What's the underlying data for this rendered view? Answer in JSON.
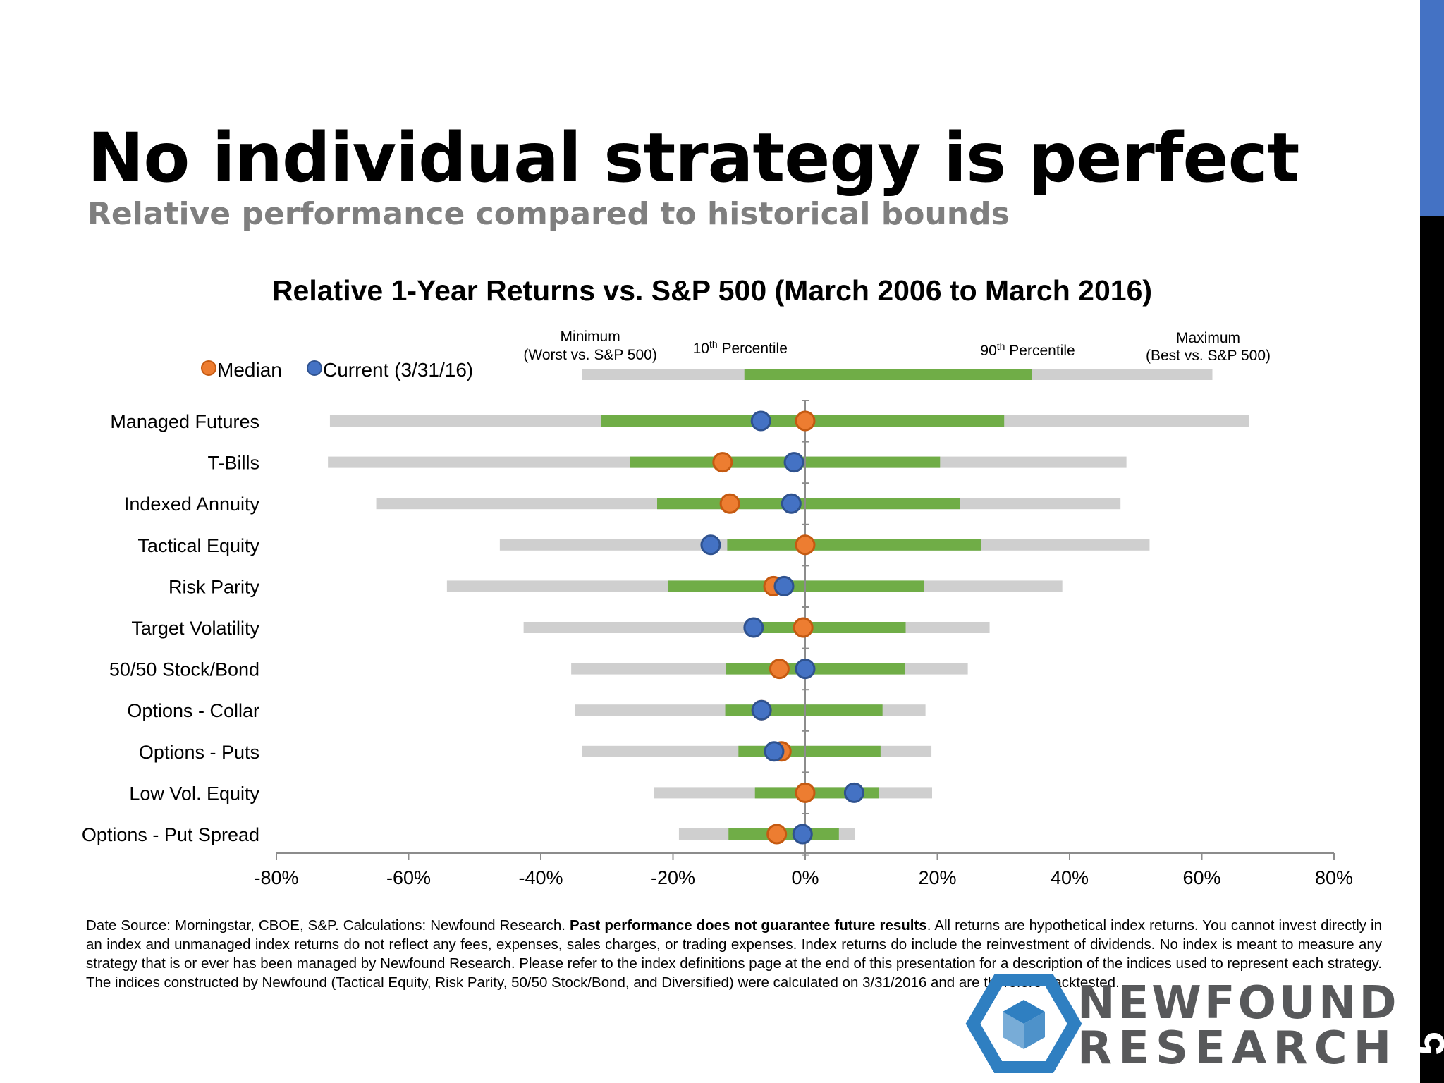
{
  "slide": {
    "title": "No individual strategy is perfect",
    "subtitle": "Relative performance compared to historical bounds",
    "page_number": "5"
  },
  "logo": {
    "line1": "NEWFOUND",
    "line2": "RESEARCH"
  },
  "footnote": {
    "part1": "Date Source: Morningstar, CBOE, S&P. Calculations: Newfound Research. ",
    "bold": "Past performance does not guarantee future results",
    "part2": ". All returns are hypothetical index returns.  You cannot invest directly in an index and unmanaged index returns do not reflect any fees, expenses, sales charges, or trading expenses. Index returns do include the reinvestment of dividends. No index is meant to measure any strategy that is or ever has been managed by Newfound Research. Please refer to the index definitions page at the end of this presentation for a description of the indices used to represent each strategy. The indices constructed by Newfound (Tactical Equity, Risk Parity, 50/50 Stock/Bond, and Diversified) were calculated on 3/31/2016 and are therefore backtested."
  },
  "chart_data": {
    "type": "range_dot",
    "title": "Relative 1-Year Returns vs. S&P 500 (March 2006 to March 2016)",
    "xlim": [
      -80,
      80
    ],
    "xticks": [
      -80,
      -60,
      -40,
      -20,
      0,
      20,
      40,
      60,
      80
    ],
    "xtick_labels": [
      "-80%",
      "-60%",
      "-40%",
      "-20%",
      "0%",
      "20%",
      "40%",
      "60%",
      "80%"
    ],
    "legend": {
      "median_label": "Median",
      "current_label": "Current (3/31/16)",
      "median_color": "#ed7d31",
      "current_color": "#4472c4",
      "key_bar": {
        "min": -33.8,
        "p10": -9.2,
        "p90": 34.3,
        "max": 61.6
      },
      "min_label": [
        "Minimum",
        "(Worst vs. S&P 500)"
      ],
      "p10_label": {
        "num": "10",
        "sup": "th",
        "rest": " Percentile"
      },
      "p90_label": {
        "num": "90",
        "sup": "th",
        "rest": "  Percentile"
      },
      "max_label": [
        "Maximum",
        "(Best vs. S&P 500)"
      ]
    },
    "colors": {
      "range": "#cfcfcf",
      "percentile": "#70ad47",
      "axis": "#8c8c8c"
    },
    "categories": [
      "Managed Futures",
      "T-Bills",
      "Indexed Annuity",
      "Tactical Equity",
      "Risk Parity",
      "Target Volatility",
      "50/50 Stock/Bond",
      "Options - Collar",
      "Options - Puts",
      "Low Vol. Equity",
      "Options - Put Spread"
    ],
    "series": [
      {
        "name": "Minimum (Worst vs. S&P 500)",
        "values": [
          -71.9,
          -72.2,
          -64.9,
          -46.2,
          -54.2,
          -42.6,
          -35.4,
          -34.8,
          -33.8,
          -22.9,
          -19.1
        ]
      },
      {
        "name": "10th Percentile",
        "values": [
          -30.9,
          -26.5,
          -22.4,
          -11.8,
          -20.8,
          -6.9,
          -12.0,
          -12.1,
          -10.1,
          -7.6,
          -11.6
        ]
      },
      {
        "name": "90th Percentile",
        "values": [
          30.1,
          20.4,
          23.4,
          26.6,
          18.0,
          15.2,
          15.1,
          11.7,
          11.4,
          11.1,
          5.1
        ]
      },
      {
        "name": "Maximum (Best vs. S&P 500)",
        "values": [
          67.2,
          48.6,
          47.7,
          52.1,
          38.9,
          27.9,
          24.6,
          18.2,
          19.1,
          19.2,
          7.5
        ]
      },
      {
        "name": "Median",
        "values": [
          0.0,
          -12.5,
          -11.4,
          0.0,
          -4.8,
          -0.3,
          -3.9,
          -6.6,
          -3.6,
          0.0,
          -4.3
        ]
      },
      {
        "name": "Current (3/31/16)",
        "values": [
          -6.7,
          -1.7,
          -2.1,
          -14.3,
          -3.2,
          -7.8,
          0.0,
          -6.6,
          -4.7,
          7.4,
          -0.4
        ]
      }
    ]
  }
}
